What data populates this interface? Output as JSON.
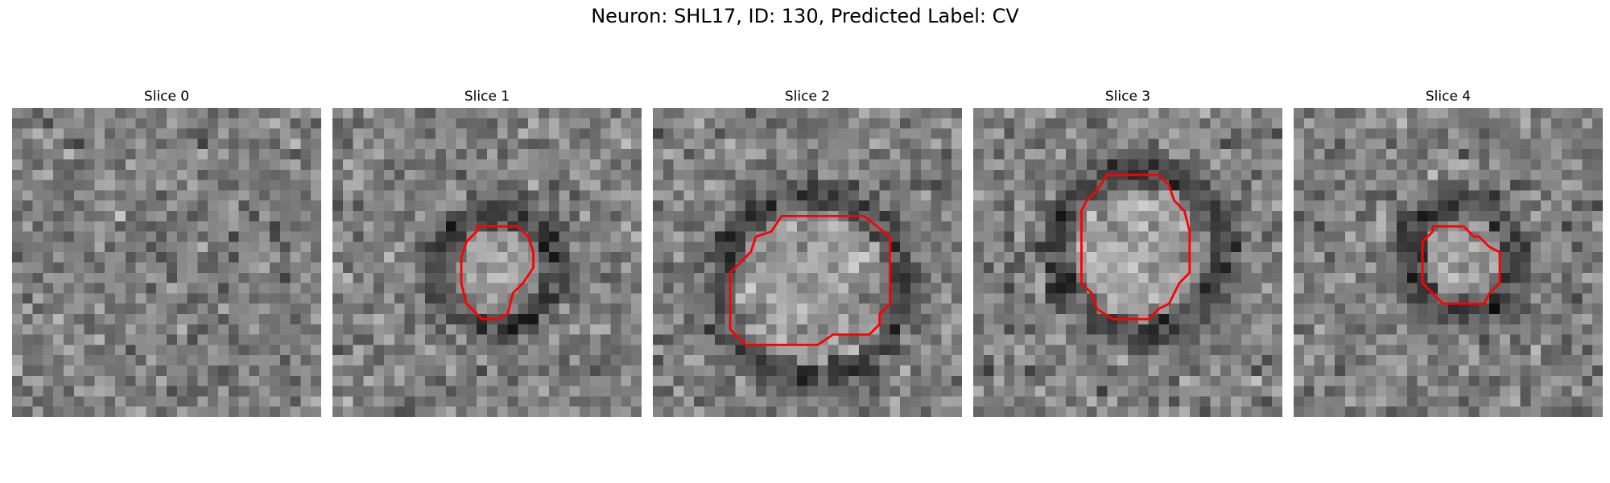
{
  "figure": {
    "title": "Neuron: SHL17, ID: 130, Predicted Label: CV",
    "overlay_color": "#ff0000",
    "colormap": "grayscale",
    "grid_size": 30,
    "slices": [
      {
        "title": "Slice 0",
        "has_contour": false,
        "contour": []
      },
      {
        "title": "Slice 1",
        "has_contour": true,
        "contour": [
          [
            14,
            11.5
          ],
          [
            18,
            11.5
          ],
          [
            19,
            12.5
          ],
          [
            19.5,
            14
          ],
          [
            19.5,
            15.5
          ],
          [
            18.5,
            17
          ],
          [
            17.5,
            18
          ],
          [
            17,
            20
          ],
          [
            16,
            20.5
          ],
          [
            14.5,
            20.5
          ],
          [
            13,
            19
          ],
          [
            12.5,
            17
          ],
          [
            12.5,
            14.5
          ],
          [
            13,
            13
          ],
          [
            14,
            12
          ]
        ]
      },
      {
        "title": "Slice 2",
        "has_contour": true,
        "contour": [
          [
            12.5,
            10.5
          ],
          [
            20.5,
            10.5
          ],
          [
            23,
            12.5
          ],
          [
            23,
            19
          ],
          [
            22,
            20
          ],
          [
            22,
            21
          ],
          [
            21,
            22
          ],
          [
            17.5,
            22
          ],
          [
            16,
            23
          ],
          [
            9,
            23
          ],
          [
            7.5,
            21.5
          ],
          [
            7.5,
            16
          ],
          [
            9.5,
            14
          ],
          [
            10,
            12.5
          ],
          [
            11.5,
            12
          ]
        ]
      },
      {
        "title": "Slice 3",
        "has_contour": true,
        "contour": [
          [
            13,
            6.5
          ],
          [
            18,
            6.5
          ],
          [
            19,
            7.5
          ],
          [
            19.5,
            9
          ],
          [
            20.5,
            10
          ],
          [
            21,
            12
          ],
          [
            21,
            16
          ],
          [
            20,
            17
          ],
          [
            19.5,
            18
          ],
          [
            19,
            19
          ],
          [
            18,
            19.5
          ],
          [
            17,
            20.5
          ],
          [
            13.5,
            20.5
          ],
          [
            12,
            19.5
          ],
          [
            11.5,
            18
          ],
          [
            10.5,
            17
          ],
          [
            10.5,
            10
          ],
          [
            11,
            9
          ],
          [
            12,
            8
          ]
        ]
      },
      {
        "title": "Slice 4",
        "has_contour": true,
        "contour": [
          [
            13.5,
            11.5
          ],
          [
            16.5,
            11.5
          ],
          [
            17.5,
            12.5
          ],
          [
            18,
            12.5
          ],
          [
            19,
            13.5
          ],
          [
            20,
            14
          ],
          [
            20,
            17
          ],
          [
            19,
            18
          ],
          [
            18.5,
            19
          ],
          [
            14.5,
            19
          ],
          [
            12.5,
            17
          ],
          [
            12.5,
            13
          ],
          [
            13.5,
            12
          ]
        ]
      }
    ]
  }
}
